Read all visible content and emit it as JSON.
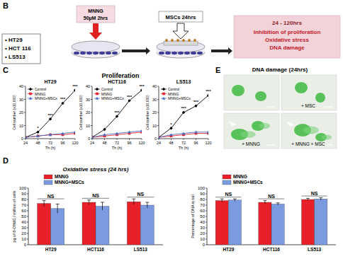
{
  "figure": {
    "panel_labels": [
      "B",
      "C",
      "D",
      "E"
    ],
    "diagram": {
      "cell_lines": [
        "• HT29",
        "• HCT 116",
        "• LS513"
      ],
      "treatment": [
        "MNNG",
        "50µM 2hrs"
      ],
      "coculture": "MSCs 24hrs",
      "outcome": {
        "title": "24 - 120hrs",
        "items": [
          "Inhibition of proliferation",
          "Oxidative stress",
          "DNA damage"
        ]
      }
    },
    "proliferation_title": "Proliferation",
    "comet": {
      "title": "DNA damage (24hrs)",
      "image_labels": [
        null,
        "+ MSC",
        "+ MNNG",
        "+ MNNG + MSC"
      ]
    }
  },
  "chart_data": [
    {
      "type": "line",
      "title": "HT29",
      "x_label": "Th (h)",
      "y_label": "Cell number (x10,000)",
      "x": [
        24,
        48,
        72,
        96,
        120
      ],
      "xlim": [
        24,
        120
      ],
      "xticks": [
        24,
        48,
        72,
        96,
        120
      ],
      "ylim": [
        0,
        40
      ],
      "yticks": [
        0,
        10,
        20,
        30,
        40
      ],
      "grid": false,
      "legend": "top-left",
      "series": [
        {
          "name": "Control",
          "color": "#000000",
          "marker": "diamond",
          "values": [
            1,
            5,
            15,
            27,
            37
          ]
        },
        {
          "name": "MNNG",
          "color": "#e8202a",
          "marker": "square",
          "values": [
            1,
            2,
            3,
            3,
            4
          ]
        },
        {
          "name": "MNNG+MSCs",
          "color": "#4a6cc0",
          "marker": "triangle",
          "values": [
            1,
            2,
            3,
            4,
            5
          ]
        }
      ],
      "annotations": [
        {
          "x": 48,
          "y": 7,
          "text": "*"
        },
        {
          "x": 72,
          "y": 17,
          "text": "***"
        },
        {
          "x": 96,
          "y": 29,
          "text": "***"
        },
        {
          "x": 120,
          "y": 39,
          "text": "***"
        }
      ]
    },
    {
      "type": "line",
      "title": "HCT116",
      "x_label": "Th (h)",
      "y_label": "Cell number (x10,000)",
      "x": [
        24,
        48,
        72,
        96,
        120
      ],
      "xlim": [
        24,
        120
      ],
      "xticks": [
        24,
        48,
        72,
        96,
        120
      ],
      "ylim": [
        0,
        40
      ],
      "yticks": [
        0,
        10,
        20,
        30,
        40
      ],
      "grid": false,
      "legend": "top-left",
      "series": [
        {
          "name": "Control",
          "color": "#000000",
          "marker": "diamond",
          "values": [
            1,
            7,
            17,
            29,
            37
          ]
        },
        {
          "name": "MNNG",
          "color": "#e8202a",
          "marker": "square",
          "values": [
            1,
            2,
            3,
            4,
            5
          ]
        },
        {
          "name": "MNNG+MSCs",
          "color": "#4a6cc0",
          "marker": "triangle",
          "values": [
            1,
            3,
            4,
            5,
            6
          ]
        }
      ],
      "annotations": [
        {
          "x": 72,
          "y": 19,
          "text": "***"
        },
        {
          "x": 96,
          "y": 31,
          "text": "***"
        },
        {
          "x": 120,
          "y": 39,
          "text": "***"
        }
      ]
    },
    {
      "type": "line",
      "title": "LS513",
      "x_label": "Th (h)",
      "y_label": "Cell number (x10,000)",
      "x": [
        24,
        48,
        72,
        96,
        120
      ],
      "xlim": [
        24,
        120
      ],
      "xticks": [
        24,
        48,
        72,
        96,
        120
      ],
      "ylim": [
        0,
        40
      ],
      "yticks": [
        0,
        10,
        20,
        30,
        40
      ],
      "grid": false,
      "legend": "top-left",
      "series": [
        {
          "name": "Control",
          "color": "#000000",
          "marker": "diamond",
          "values": [
            1,
            8,
            20,
            25,
            33
          ]
        },
        {
          "name": "MNNG",
          "color": "#e8202a",
          "marker": "square",
          "values": [
            1,
            2,
            3,
            4,
            4
          ]
        },
        {
          "name": "MNNG+MSCs",
          "color": "#4a6cc0",
          "marker": "triangle",
          "values": [
            1,
            3,
            4,
            5,
            5
          ]
        }
      ],
      "annotations": [
        {
          "x": 48,
          "y": 10,
          "text": "*"
        },
        {
          "x": 72,
          "y": 22,
          "text": "***"
        },
        {
          "x": 96,
          "y": 27,
          "text": "***"
        },
        {
          "x": 120,
          "y": 35,
          "text": "***"
        }
      ]
    },
    {
      "type": "bar",
      "title": "Oxidative stress (24 hrs)",
      "y_label": "pg of 8-OHdG / million of cells",
      "categories": [
        "HT29",
        "HCT116",
        "LS513"
      ],
      "ylim": [
        0,
        100
      ],
      "yticks": [
        0,
        10,
        20,
        30,
        40,
        50,
        60,
        70,
        80,
        90,
        100
      ],
      "grid": false,
      "legend": "top",
      "series": [
        {
          "name": "MNNG",
          "color": "#e8202a",
          "values": [
            73,
            75,
            76
          ],
          "errors": [
            5,
            4,
            5
          ]
        },
        {
          "name": "MNNG+MSCs",
          "color": "#7b9be0",
          "values": [
            64,
            68,
            70
          ],
          "errors": [
            8,
            7,
            5
          ]
        }
      ],
      "annotations": [
        "NS",
        "NS",
        "NS"
      ]
    },
    {
      "type": "bar",
      "y_label": "Percentage of DNA in tail",
      "categories": [
        "HT29",
        "HCT116",
        "LS513"
      ],
      "ylim": [
        0,
        100
      ],
      "yticks": [
        0,
        10,
        20,
        30,
        40,
        50,
        60,
        70,
        80,
        90,
        100
      ],
      "grid": false,
      "legend": "top",
      "series": [
        {
          "name": "MNNG",
          "color": "#e8202a",
          "values": [
            78,
            75,
            80
          ],
          "errors": [
            3,
            3,
            2
          ]
        },
        {
          "name": "MNNG+MSCs",
          "color": "#7b9be0",
          "values": [
            79,
            72,
            81
          ],
          "errors": [
            2,
            2,
            2
          ]
        }
      ],
      "annotations": [
        "NS",
        "NS",
        "NS"
      ]
    }
  ]
}
